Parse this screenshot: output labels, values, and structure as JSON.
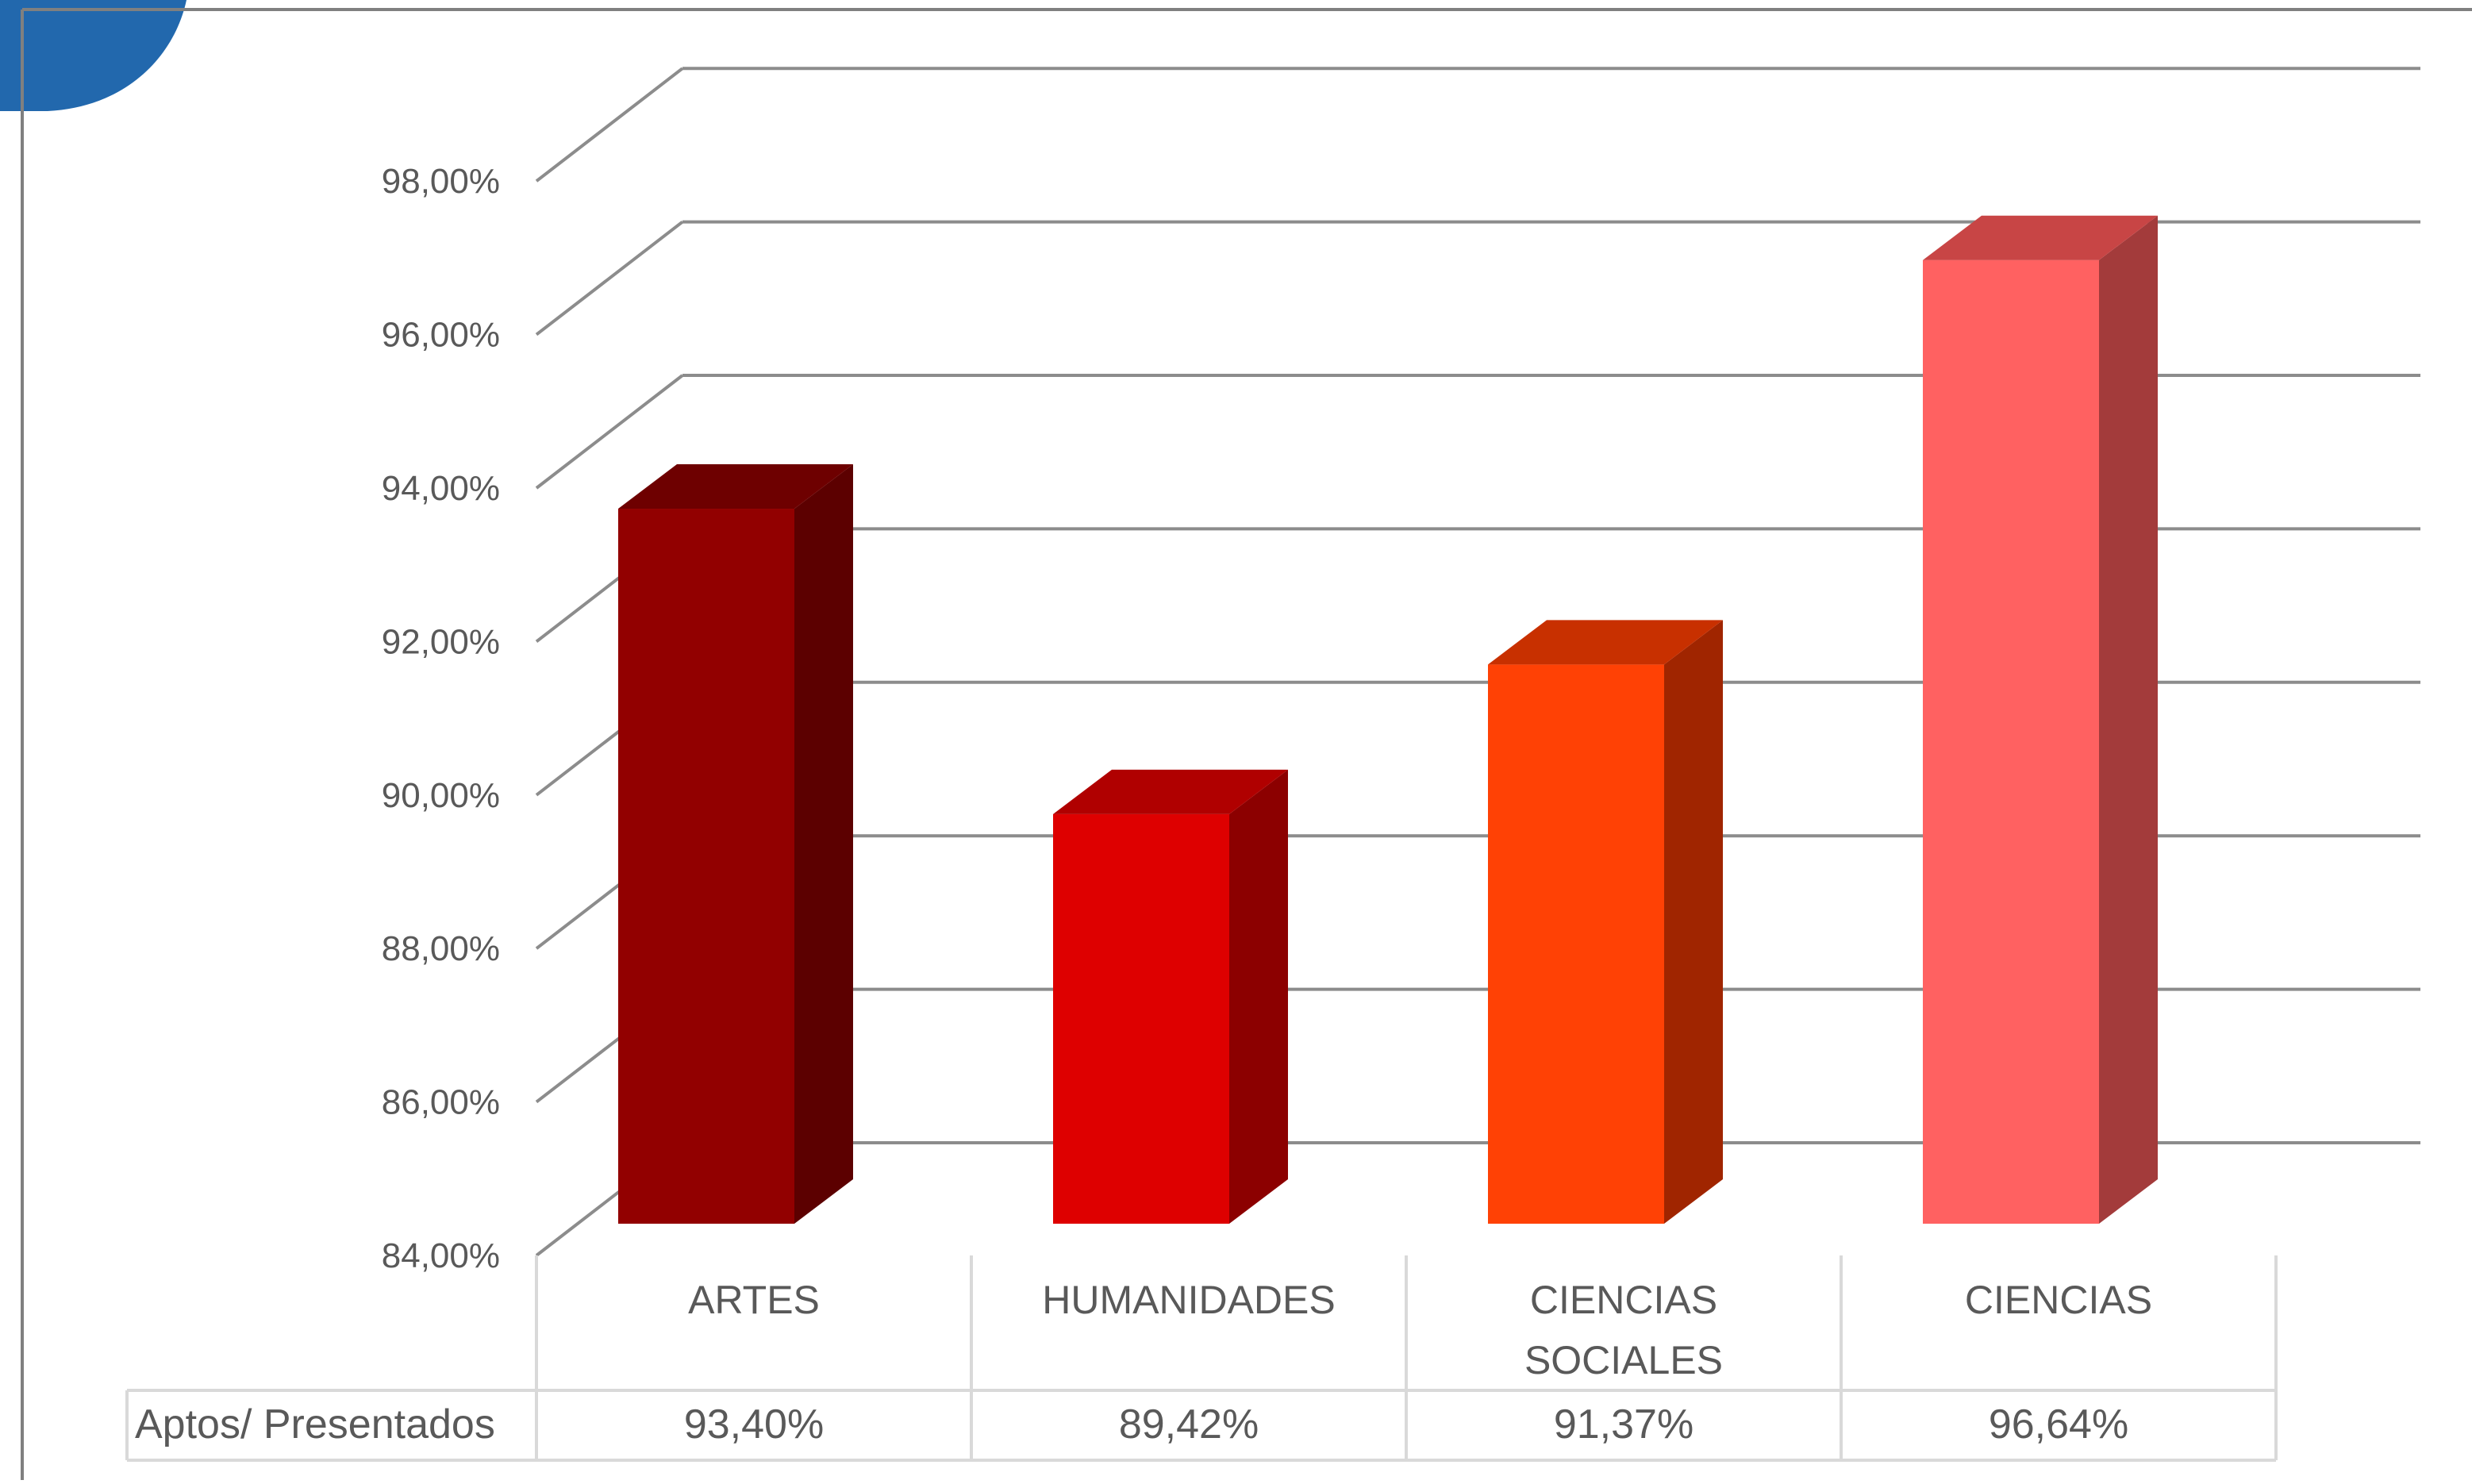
{
  "chart_data": {
    "type": "bar",
    "title": "",
    "xlabel": "",
    "ylabel": "",
    "ylim": [
      84,
      98
    ],
    "yticks": [
      "84,00%",
      "86,00%",
      "88,00%",
      "90,00%",
      "92,00%",
      "94,00%",
      "96,00%",
      "98,00%"
    ],
    "categories": [
      {
        "lines": [
          "ARTES"
        ]
      },
      {
        "lines": [
          "HUMANIDADES"
        ]
      },
      {
        "lines": [
          "CIENCIAS",
          "SOCIALES"
        ]
      },
      {
        "lines": [
          "CIENCIAS"
        ]
      }
    ],
    "series": [
      {
        "name": "Aptos/ Presentados",
        "values": [
          93.4,
          89.42,
          91.37,
          96.64
        ],
        "labels": [
          "93,40%",
          "89,42%",
          "91,37%",
          "96,64%"
        ]
      }
    ],
    "bar_colors": [
      {
        "front": "#920000",
        "side": "#5c0000",
        "top": "#6e0000"
      },
      {
        "front": "#de0000",
        "side": "#8c0000",
        "top": "#b00000"
      },
      {
        "front": "#ff4105",
        "side": "#a02500",
        "top": "#c83000"
      },
      {
        "front": "#ff6161",
        "side": "#a33b3b",
        "top": "#c84545"
      }
    ],
    "grid": true,
    "data_table": true,
    "style": "3d-column"
  },
  "decorations": {
    "corner_shape_color": "#2268ad",
    "frame_line_color": "#808080"
  }
}
